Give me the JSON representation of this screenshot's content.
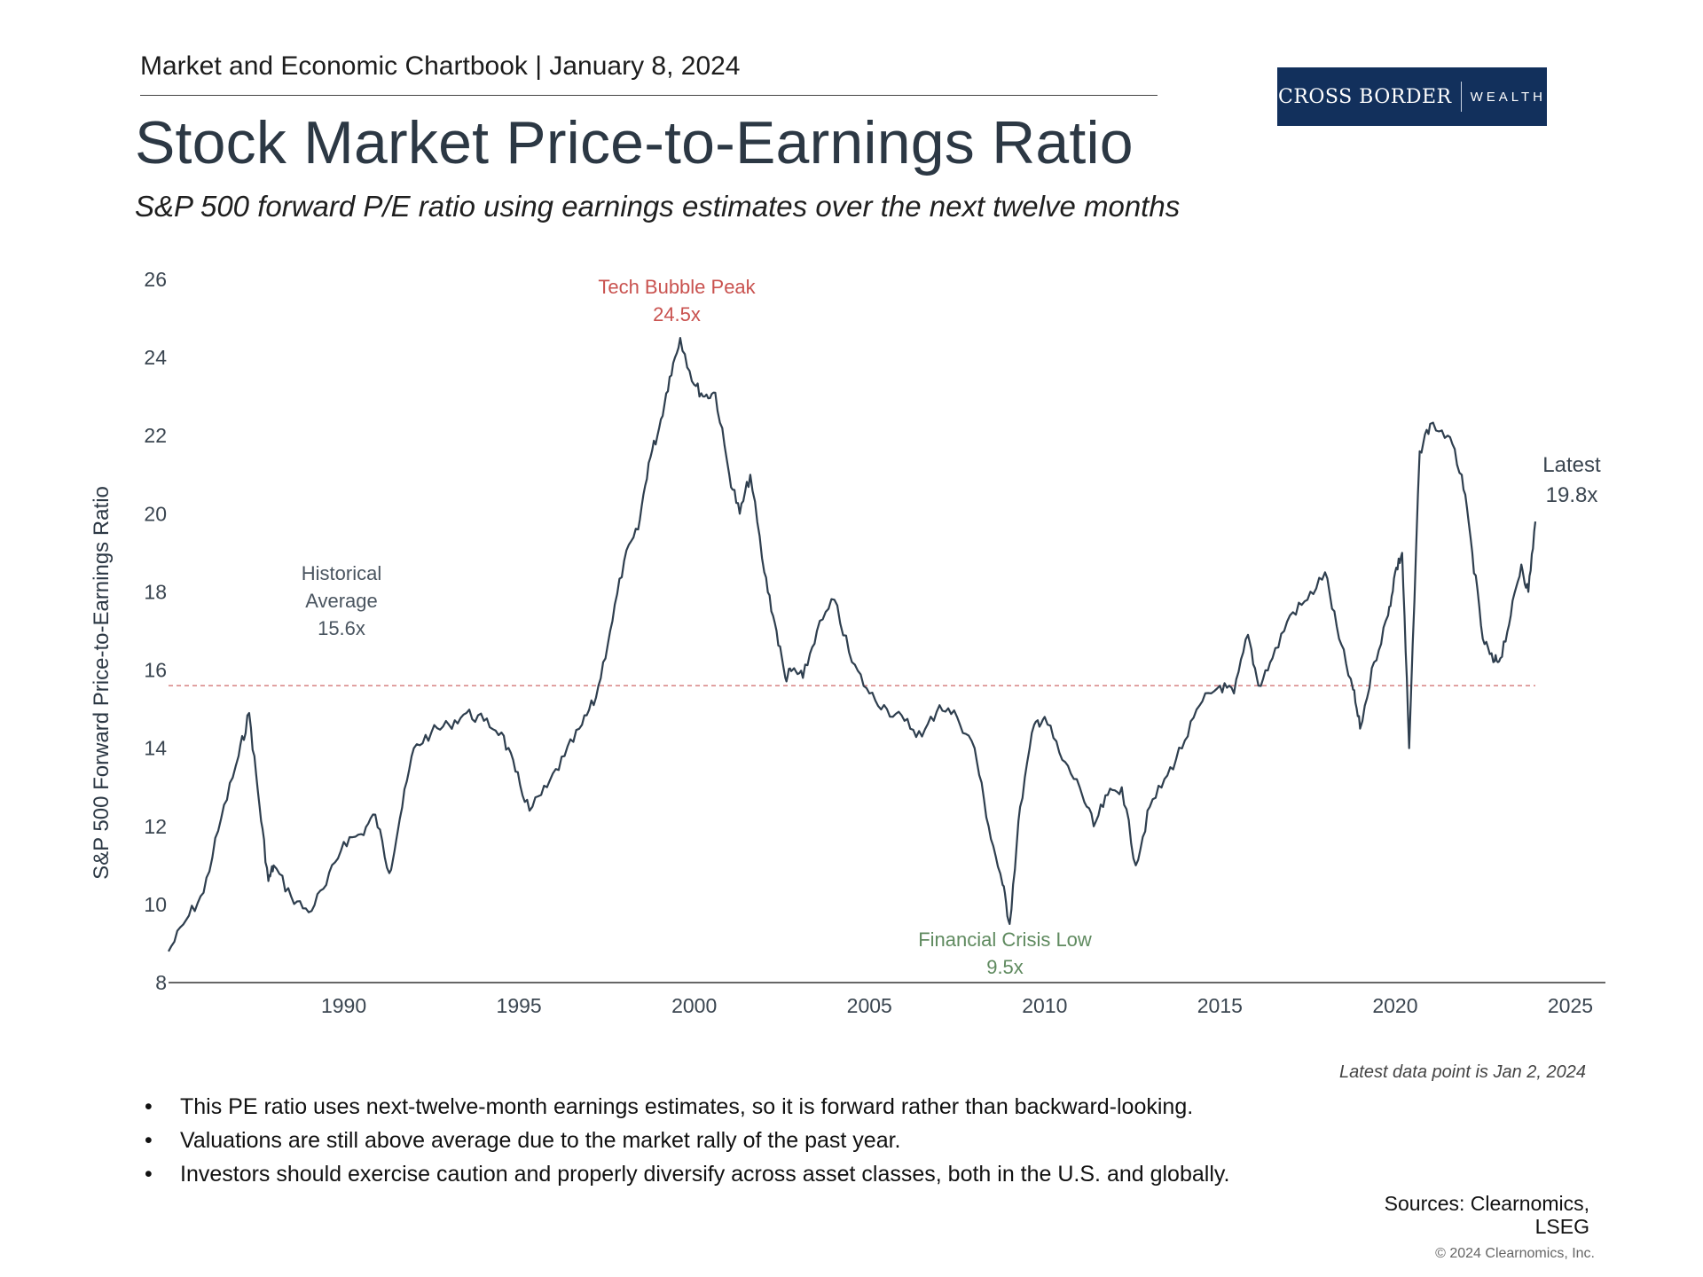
{
  "header": {
    "text": "Market and Economic Chartbook | January 8, 2024"
  },
  "logo": {
    "left": "CROSS BORDER",
    "right": "WEALTH"
  },
  "title": "Stock Market Price-to-Earnings Ratio",
  "subtitle": "S&P 500 forward P/E ratio using earnings estimates over the next twelve months",
  "colors": {
    "line": "#2f3f4f",
    "average": "#d98b8b",
    "peak": "#c9524f",
    "low": "#5f8a5f",
    "navy": "#12305c"
  },
  "chart_data": {
    "type": "line",
    "title": "Stock Market Price-to-Earnings Ratio",
    "xlabel": "",
    "ylabel": "S&P 500 Forward Price-to-Earnings Ratio",
    "xlim": [
      1985,
      2026
    ],
    "ylim": [
      8,
      26
    ],
    "yticks": [
      "8",
      "10",
      "12",
      "14",
      "16",
      "18",
      "20",
      "22",
      "24",
      "26"
    ],
    "yticks_values": [
      8,
      10,
      12,
      14,
      16,
      18,
      20,
      22,
      24,
      26
    ],
    "xticks": [
      "1990",
      "1995",
      "2000",
      "2005",
      "2010",
      "2015",
      "2020",
      "2025"
    ],
    "xticks_values": [
      1990,
      1995,
      2000,
      2005,
      2010,
      2015,
      2020,
      2025
    ],
    "historical_average": 15.6,
    "series": [
      {
        "name": "S&P 500 Forward P/E",
        "x": [
          1985.0,
          1985.5,
          1986.0,
          1986.5,
          1987.0,
          1987.3,
          1987.6,
          1987.85,
          1988.0,
          1988.5,
          1989.0,
          1989.5,
          1990.0,
          1990.5,
          1990.9,
          1991.3,
          1991.6,
          1992.0,
          1992.5,
          1993.0,
          1993.5,
          1994.0,
          1994.5,
          1994.9,
          1995.3,
          1995.8,
          1996.3,
          1996.8,
          1997.2,
          1997.6,
          1998.0,
          1998.4,
          1998.7,
          1999.0,
          1999.3,
          1999.6,
          2000.0,
          2000.3,
          2000.6,
          2001.0,
          2001.3,
          2001.6,
          2002.0,
          2002.3,
          2002.6,
          2002.8,
          2003.1,
          2003.5,
          2004.0,
          2004.5,
          2005.0,
          2005.5,
          2006.0,
          2006.5,
          2007.0,
          2007.5,
          2008.0,
          2008.4,
          2008.8,
          2009.0,
          2009.3,
          2009.7,
          2010.0,
          2010.5,
          2011.0,
          2011.4,
          2011.8,
          2012.2,
          2012.6,
          2013.0,
          2013.5,
          2014.0,
          2014.5,
          2015.0,
          2015.4,
          2015.8,
          2016.1,
          2016.5,
          2017.0,
          2017.5,
          2018.0,
          2018.4,
          2018.8,
          2019.0,
          2019.4,
          2019.8,
          2020.0,
          2020.2,
          2020.4,
          2020.7,
          2021.0,
          2021.5,
          2021.9,
          2022.2,
          2022.5,
          2022.8,
          2023.0,
          2023.3,
          2023.6,
          2023.8,
          2024.0
        ],
        "values": [
          8.8,
          9.6,
          10.3,
          12.2,
          13.8,
          14.9,
          12.5,
          10.6,
          11.0,
          10.2,
          9.8,
          10.5,
          11.6,
          11.8,
          12.3,
          10.8,
          12.2,
          14.0,
          14.4,
          14.6,
          14.9,
          14.7,
          14.4,
          13.4,
          12.4,
          13.0,
          13.8,
          14.6,
          15.3,
          17.0,
          18.8,
          19.6,
          21.3,
          22.2,
          23.5,
          24.5,
          23.3,
          23.0,
          23.1,
          21.0,
          20.0,
          21.0,
          18.5,
          17.2,
          15.8,
          16.0,
          15.8,
          17.0,
          17.8,
          16.2,
          15.4,
          15.0,
          14.7,
          14.3,
          15.1,
          14.8,
          14.0,
          12.0,
          10.5,
          9.5,
          12.5,
          14.6,
          14.8,
          13.7,
          13.0,
          12.0,
          12.8,
          13.0,
          11.0,
          12.5,
          13.3,
          14.2,
          15.2,
          15.6,
          15.4,
          16.9,
          15.6,
          16.3,
          17.4,
          17.8,
          18.5,
          16.8,
          15.5,
          14.5,
          16.2,
          17.4,
          18.5,
          19.0,
          14.0,
          21.6,
          22.3,
          22.0,
          21.0,
          19.0,
          16.8,
          16.2,
          16.3,
          17.4,
          18.7,
          18.0,
          19.8
        ]
      }
    ],
    "annotations": [
      {
        "label": "Historical",
        "label2": "Average",
        "value": "15.6x"
      },
      {
        "label": "Tech Bubble Peak",
        "value": "24.5x"
      },
      {
        "label": "Financial Crisis Low",
        "value": "9.5x"
      },
      {
        "label": "Latest",
        "value": "19.8x"
      }
    ]
  },
  "note": "Latest data point is Jan 2, 2024",
  "bullets": [
    "This PE ratio uses next-twelve-month earnings estimates, so it is forward rather than backward-looking.",
    "Valuations are still above average due to the market rally of the past year.",
    "Investors should exercise caution and properly diversify across asset classes, both in the U.S. and globally."
  ],
  "bullet_char": "•",
  "sources": {
    "line1": "Sources: Clearnomics,",
    "line2": "LSEG"
  },
  "copyright": "© 2024 Clearnomics, Inc."
}
